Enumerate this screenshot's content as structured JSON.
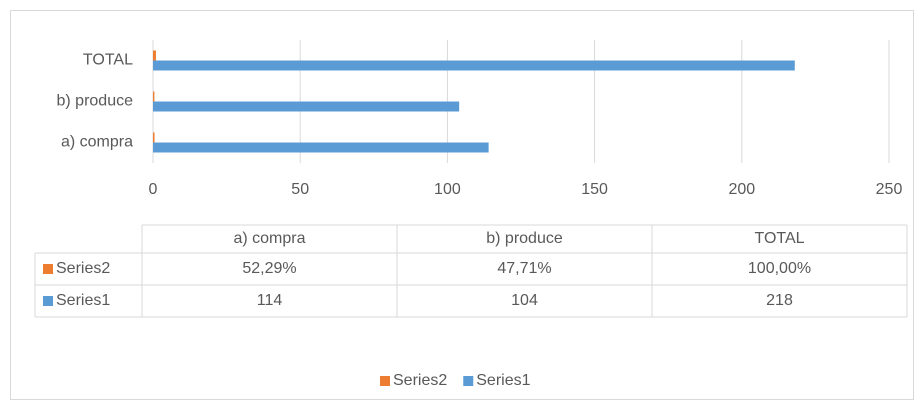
{
  "chart_data": {
    "type": "bar",
    "orientation": "horizontal",
    "categories": [
      "a) compra",
      "b) produce",
      "TOTAL"
    ],
    "series": [
      {
        "name": "Series1",
        "color": "#5b9bd5",
        "values": [
          114,
          104,
          218
        ]
      },
      {
        "name": "Series2",
        "color": "#ed7d31",
        "values": [
          0.5229,
          0.4771,
          1
        ],
        "value_labels": [
          "52,29%",
          "47,71%",
          "100,00%"
        ]
      }
    ],
    "xlim": [
      0,
      250
    ],
    "xticks": [
      0,
      50,
      100,
      150,
      200,
      250
    ],
    "grid": true,
    "legend": "bottom",
    "data_table": true
  }
}
